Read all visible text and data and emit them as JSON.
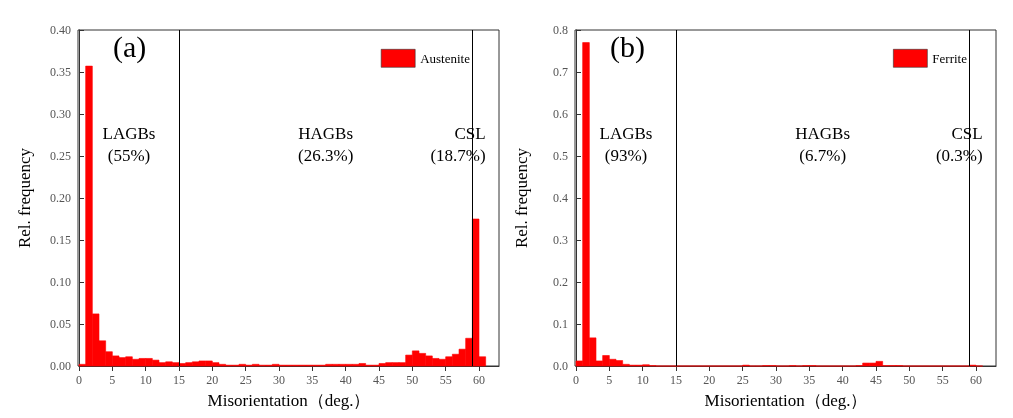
{
  "chart_data": [
    {
      "type": "histogram",
      "title": "(a)",
      "xlabel": "Misorientation（deg.）",
      "ylabel": "Rel. frequency",
      "bins": [
        0,
        1,
        2,
        3,
        4,
        5,
        6,
        7,
        8,
        9,
        10,
        11,
        12,
        13,
        14,
        15,
        16,
        17,
        18,
        19,
        20,
        21,
        22,
        23,
        24,
        25,
        26,
        27,
        28,
        29,
        30,
        31,
        32,
        33,
        34,
        35,
        36,
        37,
        38,
        39,
        40,
        41,
        42,
        43,
        44,
        45,
        46,
        47,
        48,
        49,
        50,
        51,
        52,
        53,
        54,
        55,
        56,
        57,
        58,
        59,
        60,
        61
      ],
      "series": [
        {
          "name": "Austenite",
          "color": "#ff0000",
          "values": [
            0.002,
            0.357,
            0.062,
            0.03,
            0.017,
            0.012,
            0.01,
            0.011,
            0.008,
            0.009,
            0.009,
            0.007,
            0.004,
            0.005,
            0.004,
            0.003,
            0.004,
            0.005,
            0.006,
            0.006,
            0.004,
            0.002,
            0.001,
            0.001,
            0.002,
            0.001,
            0.002,
            0.001,
            0.001,
            0.002,
            0.001,
            0.001,
            0.001,
            0.001,
            0.001,
            0.001,
            0.001,
            0.002,
            0.002,
            0.002,
            0.002,
            0.002,
            0.003,
            0.001,
            0.001,
            0.003,
            0.004,
            0.004,
            0.004,
            0.013,
            0.018,
            0.015,
            0.012,
            0.009,
            0.008,
            0.011,
            0.014,
            0.02,
            0.033,
            0.175,
            0.011
          ]
        }
      ],
      "xlim": [
        0,
        63
      ],
      "xticks": [
        0,
        5,
        10,
        15,
        20,
        25,
        30,
        35,
        40,
        45,
        50,
        55,
        60
      ],
      "ylim": [
        0,
        0.4
      ],
      "yticks": [
        {
          "value": 0,
          "label": "0.00"
        },
        {
          "value": 0.05,
          "label": "0.05"
        },
        {
          "value": 0.1,
          "label": "0.10"
        },
        {
          "value": 0.15,
          "label": "0.15"
        },
        {
          "value": 0.2,
          "label": "0.20"
        },
        {
          "value": 0.25,
          "label": "0.25"
        },
        {
          "value": 0.3,
          "label": "0.30"
        },
        {
          "value": 0.35,
          "label": "0.35"
        },
        {
          "value": 0.4,
          "label": "0.40"
        }
      ],
      "ref_lines": [
        {
          "axis": "x",
          "value": 15,
          "color": "#000000"
        },
        {
          "axis": "x",
          "value": 59,
          "color": "#000000"
        }
      ],
      "annotations": [
        "LAGBs\n(55%)",
        "HAGBs\n(26.3%)",
        "CSL\n(18.7%)"
      ],
      "legend": "top right",
      "grid": false
    },
    {
      "type": "histogram",
      "title": "(b)",
      "xlabel": "Misorientation（deg.）",
      "ylabel": "Rel. frequency",
      "bins": [
        0,
        1,
        2,
        3,
        4,
        5,
        6,
        7,
        8,
        9,
        10,
        11,
        12,
        13,
        14,
        15,
        16,
        17,
        18,
        19,
        20,
        21,
        22,
        23,
        24,
        25,
        26,
        27,
        28,
        29,
        30,
        31,
        32,
        33,
        34,
        35,
        36,
        37,
        38,
        39,
        40,
        41,
        42,
        43,
        44,
        45,
        46,
        47,
        48,
        49,
        50,
        51,
        52,
        53,
        54,
        55,
        56,
        57,
        58,
        59,
        60,
        61
      ],
      "series": [
        {
          "name": "Ferrite",
          "color": "#ff0000",
          "values": [
            0.012,
            0.77,
            0.067,
            0.012,
            0.025,
            0.016,
            0.013,
            0.004,
            0.002,
            0.002,
            0.003,
            0.001,
            0,
            0,
            0,
            0,
            0,
            0,
            0,
            0,
            0,
            0,
            0,
            0,
            0,
            0.002,
            0,
            0,
            0.001,
            0.001,
            0,
            0,
            0.001,
            0,
            0.001,
            0.001,
            0,
            0,
            0,
            0,
            0,
            0,
            0.001,
            0.007,
            0.007,
            0.011,
            0.001,
            0.001,
            0.001,
            0,
            0,
            0,
            0,
            0,
            0,
            0,
            0,
            0,
            0,
            0.002,
            0
          ]
        }
      ],
      "xlim": [
        0,
        63
      ],
      "xticks": [
        0,
        5,
        10,
        15,
        20,
        25,
        30,
        35,
        40,
        45,
        50,
        55,
        60
      ],
      "ylim": [
        0,
        0.8
      ],
      "yticks": [
        {
          "value": 0,
          "label": "0.0"
        },
        {
          "value": 0.1,
          "label": "0.1"
        },
        {
          "value": 0.2,
          "label": "0.2"
        },
        {
          "value": 0.3,
          "label": "0.3"
        },
        {
          "value": 0.4,
          "label": "0.4"
        },
        {
          "value": 0.5,
          "label": "0.5"
        },
        {
          "value": 0.6,
          "label": "0.6"
        },
        {
          "value": 0.7,
          "label": "0.7"
        },
        {
          "value": 0.8,
          "label": "0.8"
        }
      ],
      "ref_lines": [
        {
          "axis": "x",
          "value": 15,
          "color": "#000000"
        },
        {
          "axis": "x",
          "value": 59,
          "color": "#000000"
        }
      ],
      "annotations": [
        "LAGBs\n(93%)",
        "HAGBs\n(6.7%)",
        "CSL\n(0.3%)"
      ],
      "legend": "top right",
      "grid": false
    }
  ]
}
